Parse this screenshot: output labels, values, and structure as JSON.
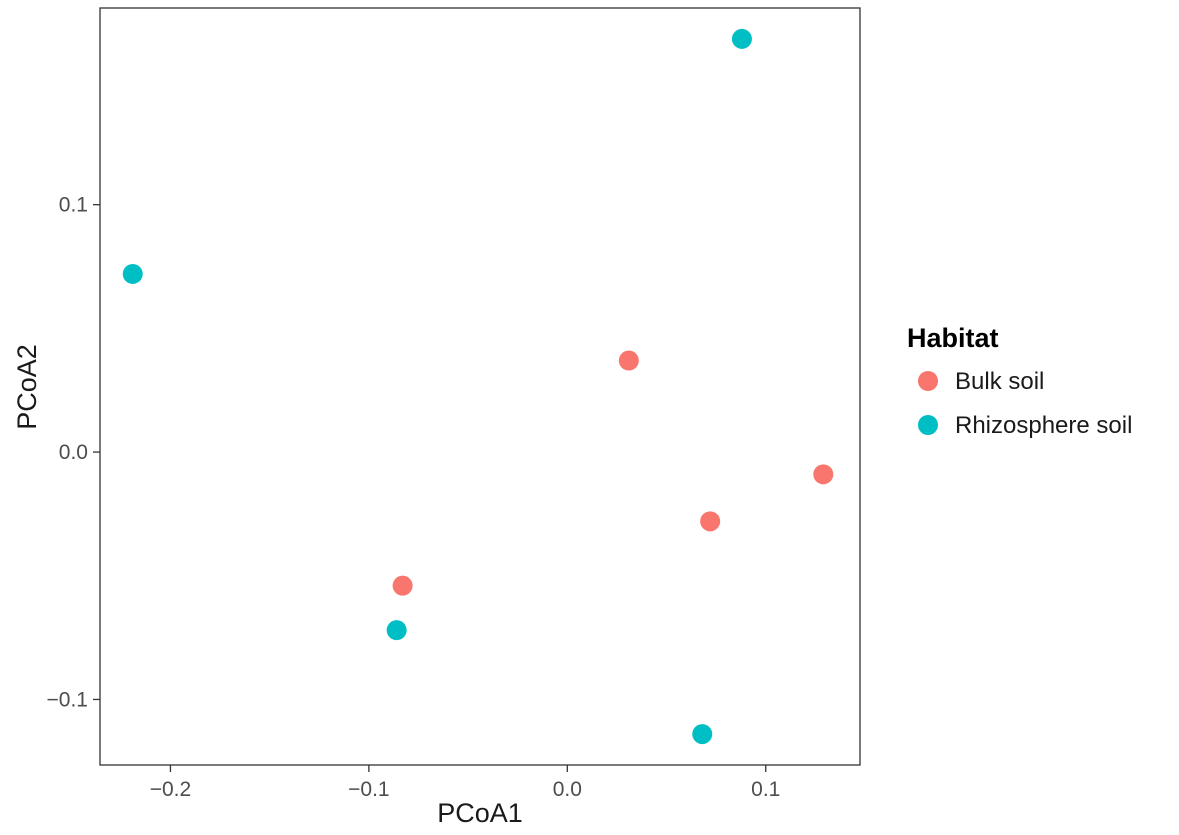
{
  "chart_data": {
    "type": "scatter",
    "title": "",
    "xlabel": "PCoA1",
    "ylabel": "PCoA2",
    "xlim": [
      -0.2355,
      0.1475
    ],
    "ylim": [
      -0.1265,
      0.1795
    ],
    "x_ticks": [
      {
        "value": -0.2,
        "label": "−0.2"
      },
      {
        "value": -0.1,
        "label": "−0.1"
      },
      {
        "value": 0.0,
        "label": "0.0"
      },
      {
        "value": 0.1,
        "label": "0.1"
      }
    ],
    "y_ticks": [
      {
        "value": -0.1,
        "label": "−0.1"
      },
      {
        "value": 0.0,
        "label": "0.0"
      },
      {
        "value": 0.1,
        "label": "0.1"
      }
    ],
    "grid": false,
    "legend": {
      "title": "Habitat",
      "position": "right"
    },
    "series": [
      {
        "name": "Bulk soil",
        "color": "#F8766D",
        "points": [
          {
            "x": 0.031,
            "y": 0.037
          },
          {
            "x": 0.129,
            "y": -0.009
          },
          {
            "x": 0.072,
            "y": -0.028
          },
          {
            "x": -0.083,
            "y": -0.054
          }
        ]
      },
      {
        "name": "Rhizosphere soil",
        "color": "#00BFC4",
        "points": [
          {
            "x": 0.088,
            "y": 0.167
          },
          {
            "x": -0.219,
            "y": 0.072
          },
          {
            "x": -0.086,
            "y": -0.072
          },
          {
            "x": 0.068,
            "y": -0.114
          }
        ]
      }
    ]
  }
}
